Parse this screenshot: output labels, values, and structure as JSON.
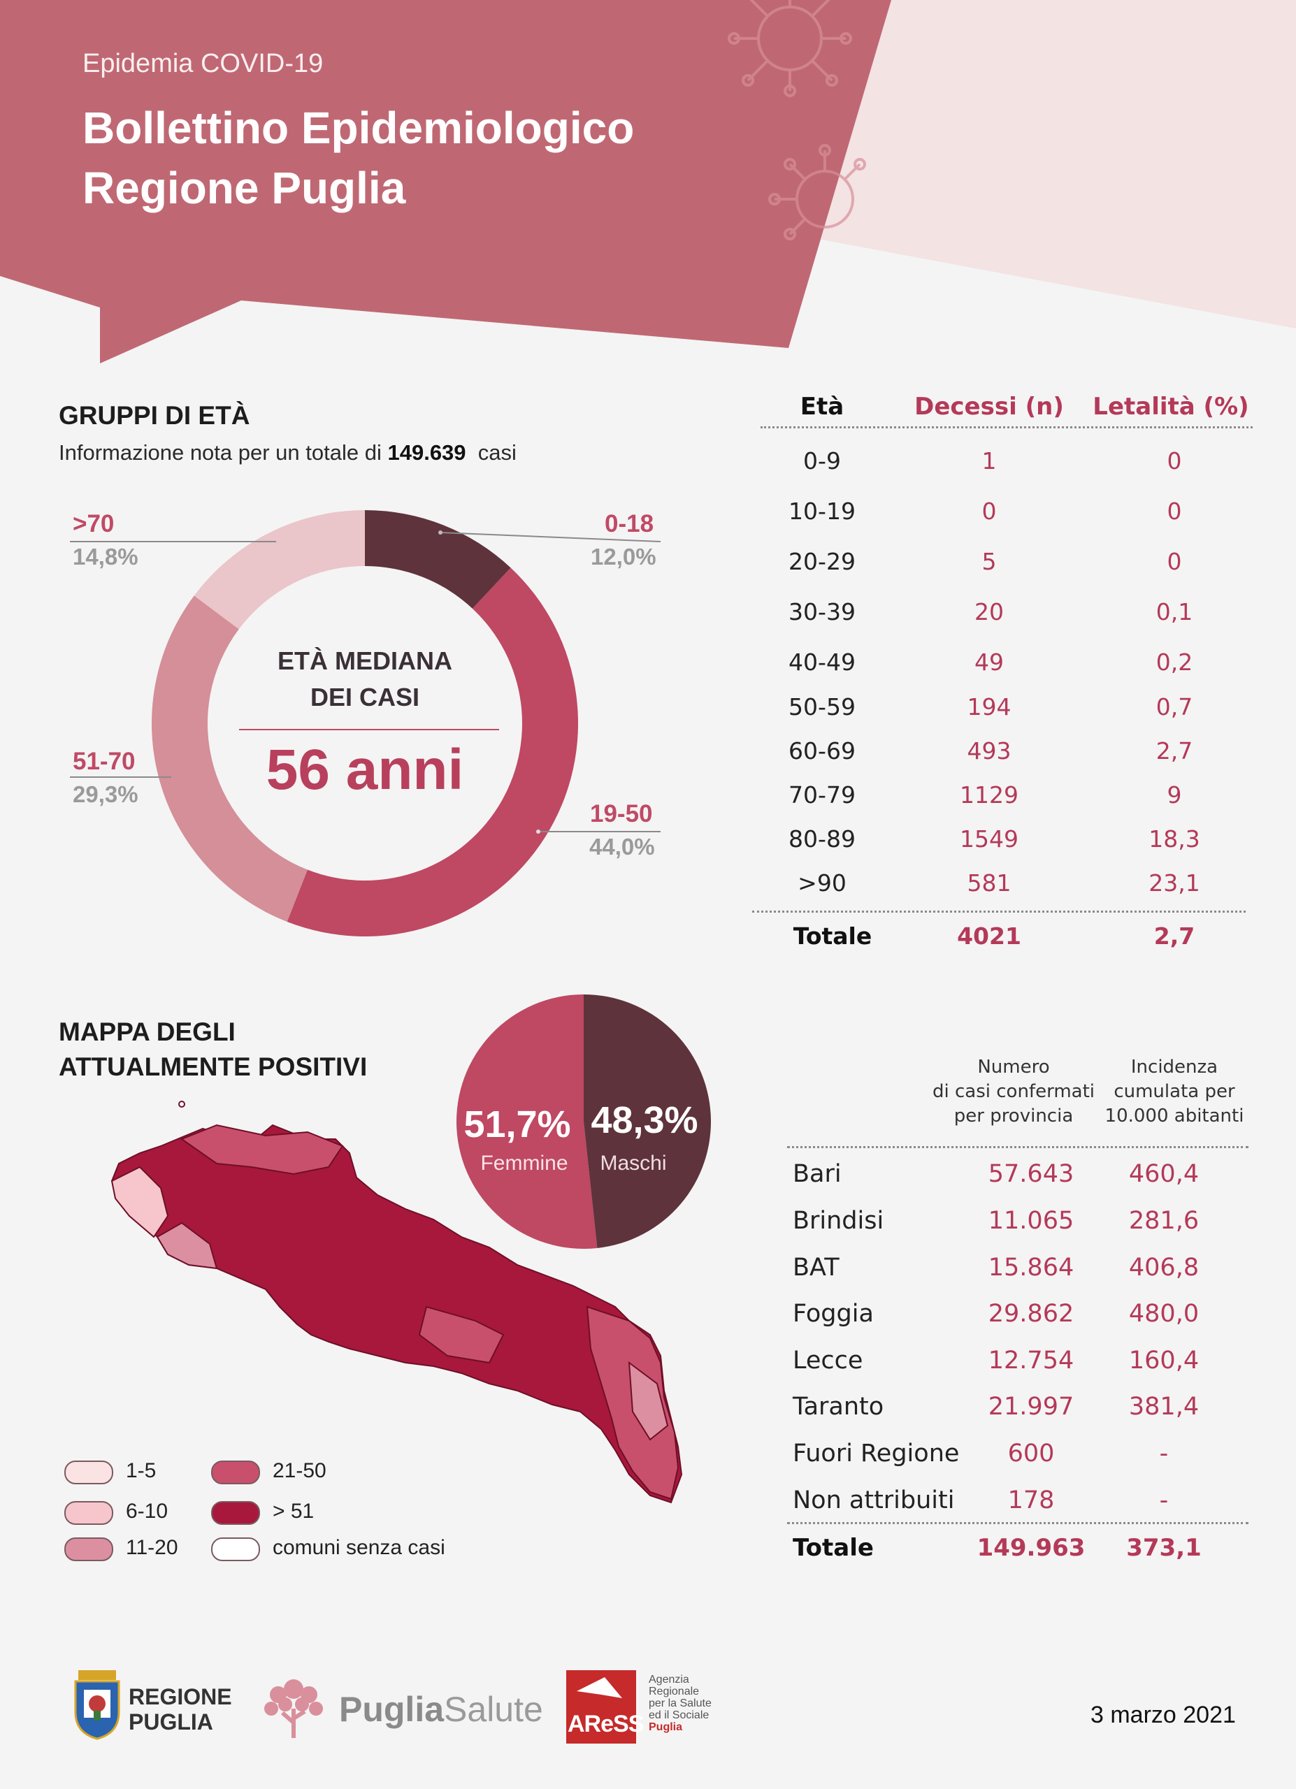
{
  "header": {
    "subtitle": "Epidemia COVID-19",
    "title_line1": "Bollettino Epidemiologico",
    "title_line2": "Regione Puglia"
  },
  "age_groups": {
    "title": "GRUPPI DI ETÀ",
    "info_prefix": "Informazione nota per un totale di",
    "info_total": "149.639",
    "info_suffix": "casi",
    "median_label_1": "ETÀ MEDIANA",
    "median_label_2": "DEI CASI",
    "median_value": "56 anni",
    "labels": [
      {
        "name": ">70",
        "pct": "14,8%"
      },
      {
        "name": "0-18",
        "pct": "12,0%"
      },
      {
        "name": "51-70",
        "pct": "29,3%"
      },
      {
        "name": "19-50",
        "pct": "44,0%"
      }
    ]
  },
  "deaths_table": {
    "headers": [
      "Età",
      "Decessi (n)",
      "Letalità (%)"
    ],
    "rows": [
      [
        "0-9",
        "1",
        "0"
      ],
      [
        "10-19",
        "0",
        "0"
      ],
      [
        "20-29",
        "5",
        "0"
      ],
      [
        "30-39",
        "20",
        "0,1"
      ],
      [
        "40-49",
        "49",
        "0,2"
      ],
      [
        "50-59",
        "194",
        "0,7"
      ],
      [
        "60-69",
        "493",
        "2,7"
      ],
      [
        "70-79",
        "1129",
        "9"
      ],
      [
        "80-89",
        "1549",
        "18,3"
      ],
      [
        ">90",
        "581",
        "23,1"
      ]
    ],
    "total": [
      "Totale",
      "4021",
      "2,7"
    ]
  },
  "map": {
    "title_line1": "MAPPA DEGLI",
    "title_line2": "ATTUALMENTE POSITIVI",
    "legend": [
      {
        "label": "1-5",
        "color": "#fbe3e3"
      },
      {
        "label": "6-10",
        "color": "#f6c6cc"
      },
      {
        "label": "11-20",
        "color": "#dd8fa2"
      },
      {
        "label": "21-50",
        "color": "#c9506c"
      },
      {
        "label": "> 51",
        "color": "#a8183c"
      },
      {
        "label": "comuni senza casi",
        "color": "#ffffff"
      }
    ]
  },
  "gender": {
    "female_pct": "51,7%",
    "female_label": "Femmine",
    "male_pct": "48,3%",
    "male_label": "Maschi"
  },
  "province_table": {
    "head_col1": [
      "Numero",
      "di casi confermati",
      "per provincia"
    ],
    "head_col2": [
      "Incidenza",
      "cumulata per",
      "10.000 abitanti"
    ],
    "rows": [
      [
        "Bari",
        "57.643",
        "460,4"
      ],
      [
        "Brindisi",
        "11.065",
        "281,6"
      ],
      [
        "BAT",
        "15.864",
        "406,8"
      ],
      [
        "Foggia",
        "29.862",
        "480,0"
      ],
      [
        "Lecce",
        "12.754",
        "160,4"
      ],
      [
        "Taranto",
        "21.997",
        "381,4"
      ],
      [
        "Fuori Regione",
        "600",
        "-"
      ],
      [
        "Non attribuiti",
        "178",
        "-"
      ]
    ],
    "total": [
      "Totale",
      "149.963",
      "373,1"
    ]
  },
  "footer": {
    "regione_1": "REGIONE",
    "regione_2": "PUGLIA",
    "puglia": "Puglia",
    "salute": "Salute",
    "aress": "AReSS",
    "aress_desc": [
      "Agenzia",
      "Regionale",
      "per la Salute",
      "ed il Sociale",
      "Puglia"
    ],
    "date": "3 marzo 2021"
  },
  "chart_data": [
    {
      "type": "pie",
      "categories": [
        "0-18",
        "19-50",
        "51-70",
        ">70"
      ],
      "values": [
        12.0,
        44.0,
        29.3,
        14.8
      ],
      "colors": [
        "#5e333c",
        "#bf4863",
        "#d48f98",
        "#eac5c9"
      ],
      "title": "GRUPPI DI ETÀ",
      "donut": true
    },
    {
      "type": "pie",
      "categories": [
        "Femmine",
        "Maschi"
      ],
      "values": [
        51.7,
        48.3
      ],
      "colors": [
        "#bf4863",
        "#5e333c"
      ]
    }
  ]
}
